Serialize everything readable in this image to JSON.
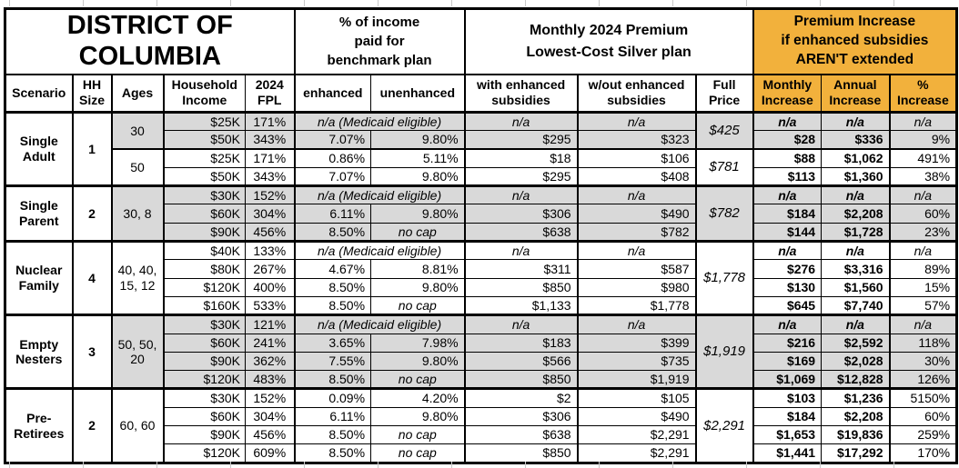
{
  "header": {
    "title": "DISTRICT OF\nCOLUMBIA",
    "benchmark_group": "% of income\npaid for\nbenchmark plan",
    "premium_group": "Monthly 2024 Premium\nLowest-Cost Silver plan",
    "increase_group": "Premium Increase\nif enhanced subsidies\nAREN'T extended"
  },
  "columns": {
    "scenario": "Scenario",
    "hh_size": "HH\nSize",
    "ages": "Ages",
    "household_income": "Household\nIncome",
    "fpl_2024": "2024\nFPL",
    "enhanced": "enhanced",
    "unenhanced": "unenhanced",
    "with_subsidies": "with enhanced\nsubsidies",
    "without_subsidies": "w/out enhanced\nsubsidies",
    "full_price": "Full\nPrice",
    "monthly_increase": "Monthly\nIncrease",
    "annual_increase": "Annual\nIncrease",
    "pct_increase": "%\nIncrease"
  },
  "labels": {
    "na": "n/a",
    "medicaid": "n/a (Medicaid eligible)",
    "no_cap": "no cap"
  },
  "colors": {
    "header_orange": "#F2B13C",
    "row_gray": "#D9D9D9",
    "border_black": "#000000"
  },
  "groups": [
    {
      "scenario": "Single Adult",
      "hh": "1",
      "subgroups": [
        {
          "ages": "30",
          "shade": true,
          "full_price": "$425",
          "rows": [
            {
              "income": "$25K",
              "fpl": "171%",
              "medicaid": true
            },
            {
              "income": "$50K",
              "fpl": "343%",
              "enhanced": "7.07%",
              "unenhanced": "9.80%",
              "with_sub": "$295",
              "wo_sub": "$323",
              "monthly": "$28",
              "annual": "$336",
              "pct": "9%"
            }
          ]
        },
        {
          "ages": "50",
          "shade": false,
          "full_price": "$781",
          "rows": [
            {
              "income": "$25K",
              "fpl": "171%",
              "enhanced": "0.86%",
              "unenhanced": "5.11%",
              "with_sub": "$18",
              "wo_sub": "$106",
              "monthly": "$88",
              "annual": "$1,062",
              "pct": "491%"
            },
            {
              "income": "$50K",
              "fpl": "343%",
              "enhanced": "7.07%",
              "unenhanced": "9.80%",
              "with_sub": "$295",
              "wo_sub": "$408",
              "monthly": "$113",
              "annual": "$1,360",
              "pct": "38%"
            }
          ]
        }
      ]
    },
    {
      "scenario": "Single Parent",
      "hh": "2",
      "subgroups": [
        {
          "ages": "30, 8",
          "shade": true,
          "full_price": "$782",
          "rows": [
            {
              "income": "$30K",
              "fpl": "152%",
              "medicaid": true
            },
            {
              "income": "$60K",
              "fpl": "304%",
              "enhanced": "6.11%",
              "unenhanced": "9.80%",
              "with_sub": "$306",
              "wo_sub": "$490",
              "monthly": "$184",
              "annual": "$2,208",
              "pct": "60%"
            },
            {
              "income": "$90K",
              "fpl": "456%",
              "enhanced": "8.50%",
              "unenhanced": "no cap",
              "with_sub": "$638",
              "wo_sub": "$782",
              "monthly": "$144",
              "annual": "$1,728",
              "pct": "23%"
            }
          ]
        }
      ]
    },
    {
      "scenario": "Nuclear Family",
      "hh": "4",
      "subgroups": [
        {
          "ages": "40, 40, 15, 12",
          "shade": false,
          "full_price": "$1,778",
          "rows": [
            {
              "income": "$40K",
              "fpl": "133%",
              "medicaid": true
            },
            {
              "income": "$80K",
              "fpl": "267%",
              "enhanced": "4.67%",
              "unenhanced": "8.81%",
              "with_sub": "$311",
              "wo_sub": "$587",
              "monthly": "$276",
              "annual": "$3,316",
              "pct": "89%"
            },
            {
              "income": "$120K",
              "fpl": "400%",
              "enhanced": "8.50%",
              "unenhanced": "9.80%",
              "with_sub": "$850",
              "wo_sub": "$980",
              "monthly": "$130",
              "annual": "$1,560",
              "pct": "15%"
            },
            {
              "income": "$160K",
              "fpl": "533%",
              "enhanced": "8.50%",
              "unenhanced": "no cap",
              "with_sub": "$1,133",
              "wo_sub": "$1,778",
              "monthly": "$645",
              "annual": "$7,740",
              "pct": "57%"
            }
          ]
        }
      ]
    },
    {
      "scenario": "Empty Nesters",
      "hh": "3",
      "subgroups": [
        {
          "ages": "50, 50, 20",
          "shade": true,
          "full_price": "$1,919",
          "rows": [
            {
              "income": "$30K",
              "fpl": "121%",
              "medicaid": true
            },
            {
              "income": "$60K",
              "fpl": "241%",
              "enhanced": "3.65%",
              "unenhanced": "7.98%",
              "with_sub": "$183",
              "wo_sub": "$399",
              "monthly": "$216",
              "annual": "$2,592",
              "pct": "118%"
            },
            {
              "income": "$90K",
              "fpl": "362%",
              "enhanced": "7.55%",
              "unenhanced": "9.80%",
              "with_sub": "$566",
              "wo_sub": "$735",
              "monthly": "$169",
              "annual": "$2,028",
              "pct": "30%"
            },
            {
              "income": "$120K",
              "fpl": "483%",
              "enhanced": "8.50%",
              "unenhanced": "no cap",
              "with_sub": "$850",
              "wo_sub": "$1,919",
              "monthly": "$1,069",
              "annual": "$12,828",
              "pct": "126%"
            }
          ]
        }
      ]
    },
    {
      "scenario": "Pre-Retirees",
      "hh": "2",
      "subgroups": [
        {
          "ages": "60, 60",
          "shade": false,
          "full_price": "$2,291",
          "rows": [
            {
              "income": "$30K",
              "fpl": "152%",
              "enhanced": "0.09%",
              "unenhanced": "4.20%",
              "with_sub": "$2",
              "wo_sub": "$105",
              "monthly": "$103",
              "annual": "$1,236",
              "pct": "5150%"
            },
            {
              "income": "$60K",
              "fpl": "304%",
              "enhanced": "6.11%",
              "unenhanced": "9.80%",
              "with_sub": "$306",
              "wo_sub": "$490",
              "monthly": "$184",
              "annual": "$2,208",
              "pct": "60%"
            },
            {
              "income": "$90K",
              "fpl": "456%",
              "enhanced": "8.50%",
              "unenhanced": "no cap",
              "with_sub": "$638",
              "wo_sub": "$2,291",
              "monthly": "$1,653",
              "annual": "$19,836",
              "pct": "259%"
            },
            {
              "income": "$120K",
              "fpl": "609%",
              "enhanced": "8.50%",
              "unenhanced": "no cap",
              "with_sub": "$850",
              "wo_sub": "$2,291",
              "monthly": "$1,441",
              "annual": "$17,292",
              "pct": "170%"
            }
          ]
        }
      ]
    }
  ]
}
